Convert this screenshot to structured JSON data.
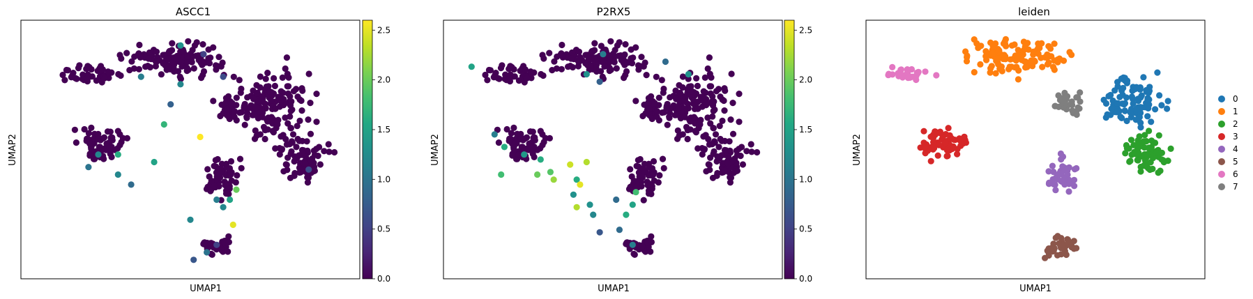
{
  "chart_data": [
    {
      "type": "scatter",
      "title": "ASCC1",
      "xlabel": "UMAP1",
      "ylabel": "UMAP2",
      "colorbar": {
        "cmap": "viridis",
        "range": [
          0.0,
          2.6
        ],
        "ticks": [
          "0.0",
          "0.5",
          "1.0",
          "1.5",
          "2.0",
          "2.5"
        ]
      },
      "grid": false,
      "highlights": [
        {
          "x": 0.47,
          "y": 0.915,
          "v": 1.3
        },
        {
          "x": 0.35,
          "y": 0.79,
          "v": 1.1
        },
        {
          "x": 0.47,
          "y": 0.76,
          "v": 1.2
        },
        {
          "x": 0.6,
          "y": 0.79,
          "v": 0.6
        },
        {
          "x": 0.54,
          "y": 0.88,
          "v": 0.5
        },
        {
          "x": 0.42,
          "y": 0.6,
          "v": 1.7
        },
        {
          "x": 0.53,
          "y": 0.55,
          "v": 2.6
        },
        {
          "x": 0.22,
          "y": 0.48,
          "v": 1.2
        },
        {
          "x": 0.19,
          "y": 0.43,
          "v": 1.0
        },
        {
          "x": 0.28,
          "y": 0.48,
          "v": 1.6
        },
        {
          "x": 0.39,
          "y": 0.45,
          "v": 1.5
        },
        {
          "x": 0.28,
          "y": 0.4,
          "v": 1.2
        },
        {
          "x": 0.32,
          "y": 0.36,
          "v": 0.9
        },
        {
          "x": 0.64,
          "y": 0.34,
          "v": 2.0
        },
        {
          "x": 0.62,
          "y": 0.3,
          "v": 1.5
        },
        {
          "x": 0.6,
          "y": 0.27,
          "v": 1.2
        },
        {
          "x": 0.58,
          "y": 0.3,
          "v": 1.1
        },
        {
          "x": 0.5,
          "y": 0.22,
          "v": 1.2
        },
        {
          "x": 0.63,
          "y": 0.2,
          "v": 2.5
        },
        {
          "x": 0.58,
          "y": 0.12,
          "v": 0.5
        },
        {
          "x": 0.55,
          "y": 0.09,
          "v": 1.0
        },
        {
          "x": 0.51,
          "y": 0.06,
          "v": 0.7
        },
        {
          "x": 0.44,
          "y": 0.68,
          "v": 0.8
        },
        {
          "x": 0.86,
          "y": 0.42,
          "v": 0.6
        }
      ]
    },
    {
      "type": "scatter",
      "title": "P2RX5",
      "xlabel": "UMAP1",
      "ylabel": "UMAP2",
      "colorbar": {
        "cmap": "viridis",
        "range": [
          0.0,
          2.6
        ],
        "ticks": [
          "0.0",
          "0.5",
          "1.0",
          "1.5",
          "2.0",
          "2.5"
        ]
      },
      "grid": false,
      "highlights": [
        {
          "x": 0.07,
          "y": 0.83,
          "v": 1.5
        },
        {
          "x": 0.47,
          "y": 0.88,
          "v": 1.1
        },
        {
          "x": 0.42,
          "y": 0.8,
          "v": 1.3
        },
        {
          "x": 0.46,
          "y": 0.77,
          "v": 0.8
        },
        {
          "x": 0.66,
          "y": 0.85,
          "v": 0.9
        },
        {
          "x": 0.73,
          "y": 0.8,
          "v": 1.3
        },
        {
          "x": 0.14,
          "y": 0.56,
          "v": 1.1
        },
        {
          "x": 0.17,
          "y": 0.51,
          "v": 1.6
        },
        {
          "x": 0.23,
          "y": 0.48,
          "v": 1.4
        },
        {
          "x": 0.28,
          "y": 0.46,
          "v": 1.6
        },
        {
          "x": 0.31,
          "y": 0.41,
          "v": 1.9
        },
        {
          "x": 0.27,
          "y": 0.4,
          "v": 2.0
        },
        {
          "x": 0.32,
          "y": 0.38,
          "v": 2.2
        },
        {
          "x": 0.16,
          "y": 0.4,
          "v": 1.8
        },
        {
          "x": 0.37,
          "y": 0.44,
          "v": 2.4
        },
        {
          "x": 0.42,
          "y": 0.45,
          "v": 2.3
        },
        {
          "x": 0.39,
          "y": 0.38,
          "v": 1.6
        },
        {
          "x": 0.4,
          "y": 0.36,
          "v": 2.5
        },
        {
          "x": 0.38,
          "y": 0.32,
          "v": 1.3
        },
        {
          "x": 0.39,
          "y": 0.27,
          "v": 2.3
        },
        {
          "x": 0.43,
          "y": 0.28,
          "v": 1.3
        },
        {
          "x": 0.57,
          "y": 0.33,
          "v": 1.8
        },
        {
          "x": 0.56,
          "y": 0.28,
          "v": 1.5
        },
        {
          "x": 0.51,
          "y": 0.3,
          "v": 0.9
        },
        {
          "x": 0.54,
          "y": 0.24,
          "v": 1.6
        },
        {
          "x": 0.44,
          "y": 0.24,
          "v": 1.2
        },
        {
          "x": 0.52,
          "y": 0.18,
          "v": 0.9
        },
        {
          "x": 0.46,
          "y": 0.17,
          "v": 0.7
        },
        {
          "x": 0.56,
          "y": 0.12,
          "v": 1.1
        }
      ]
    },
    {
      "type": "scatter",
      "title": "leiden",
      "xlabel": "UMAP1",
      "ylabel": "UMAP2",
      "grid": false,
      "legend": {
        "placement": "right",
        "entries": [
          {
            "label": "0",
            "color": "#1f77b4"
          },
          {
            "label": "1",
            "color": "#ff7f0e"
          },
          {
            "label": "2",
            "color": "#2ca02c"
          },
          {
            "label": "3",
            "color": "#d62728"
          },
          {
            "label": "4",
            "color": "#9467bd"
          },
          {
            "label": "5",
            "color": "#8c564b"
          },
          {
            "label": "6",
            "color": "#e377c2"
          },
          {
            "label": "7",
            "color": "#7f7f7f"
          }
        ]
      },
      "clusters": [
        {
          "label": "0",
          "cx": 0.8,
          "cy": 0.7,
          "rx": 0.12,
          "ry": 0.14,
          "n": 95
        },
        {
          "label": "1",
          "cx": 0.45,
          "cy": 0.87,
          "rx": 0.19,
          "ry": 0.09,
          "n": 120
        },
        {
          "label": "2",
          "cx": 0.83,
          "cy": 0.48,
          "rx": 0.1,
          "ry": 0.12,
          "n": 75
        },
        {
          "label": "3",
          "cx": 0.22,
          "cy": 0.52,
          "rx": 0.1,
          "ry": 0.08,
          "n": 65
        },
        {
          "label": "4",
          "cx": 0.58,
          "cy": 0.4,
          "rx": 0.05,
          "ry": 0.1,
          "n": 45
        },
        {
          "label": "5",
          "cx": 0.58,
          "cy": 0.11,
          "rx": 0.07,
          "ry": 0.06,
          "n": 35
        },
        {
          "label": "6",
          "cx": 0.12,
          "cy": 0.8,
          "rx": 0.11,
          "ry": 0.04,
          "n": 25
        },
        {
          "label": "7",
          "cx": 0.6,
          "cy": 0.68,
          "rx": 0.06,
          "ry": 0.07,
          "n": 30
        }
      ]
    }
  ]
}
